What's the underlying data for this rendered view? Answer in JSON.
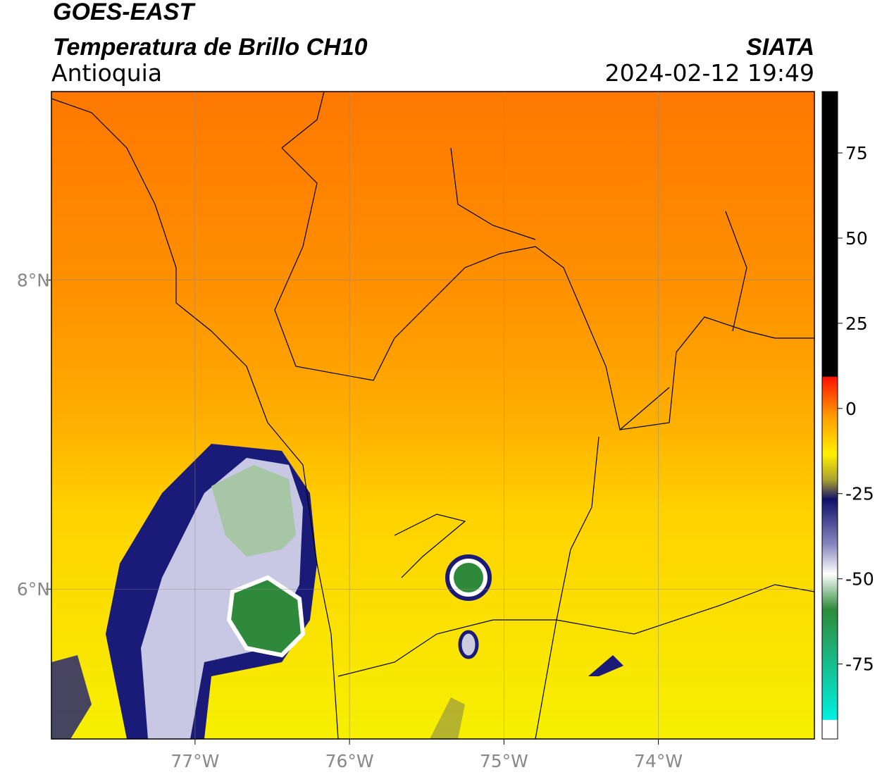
{
  "header": {
    "title": "GOES-EAST",
    "subtitle": "Temperatura de Brillo CH10",
    "region": "Antioquia",
    "source": "SIATA",
    "datetime": "2024-02-12 19:49"
  },
  "map": {
    "xlim": [
      -77.93,
      -72.99
    ],
    "ylim": [
      5.03,
      9.22
    ],
    "xticks": [
      {
        "value": -77,
        "label": "77°W"
      },
      {
        "value": -76,
        "label": "76°W"
      },
      {
        "value": -75,
        "label": "75°W"
      },
      {
        "value": -74,
        "label": "74°W"
      }
    ],
    "yticks": [
      {
        "value": 8,
        "label": "8°N"
      },
      {
        "value": 6,
        "label": "6°N"
      }
    ],
    "grid": true
  },
  "colorbar": {
    "range": [
      -97,
      93
    ],
    "ticks": [
      75,
      50,
      25,
      0,
      -25,
      -50,
      -75
    ]
  }
}
